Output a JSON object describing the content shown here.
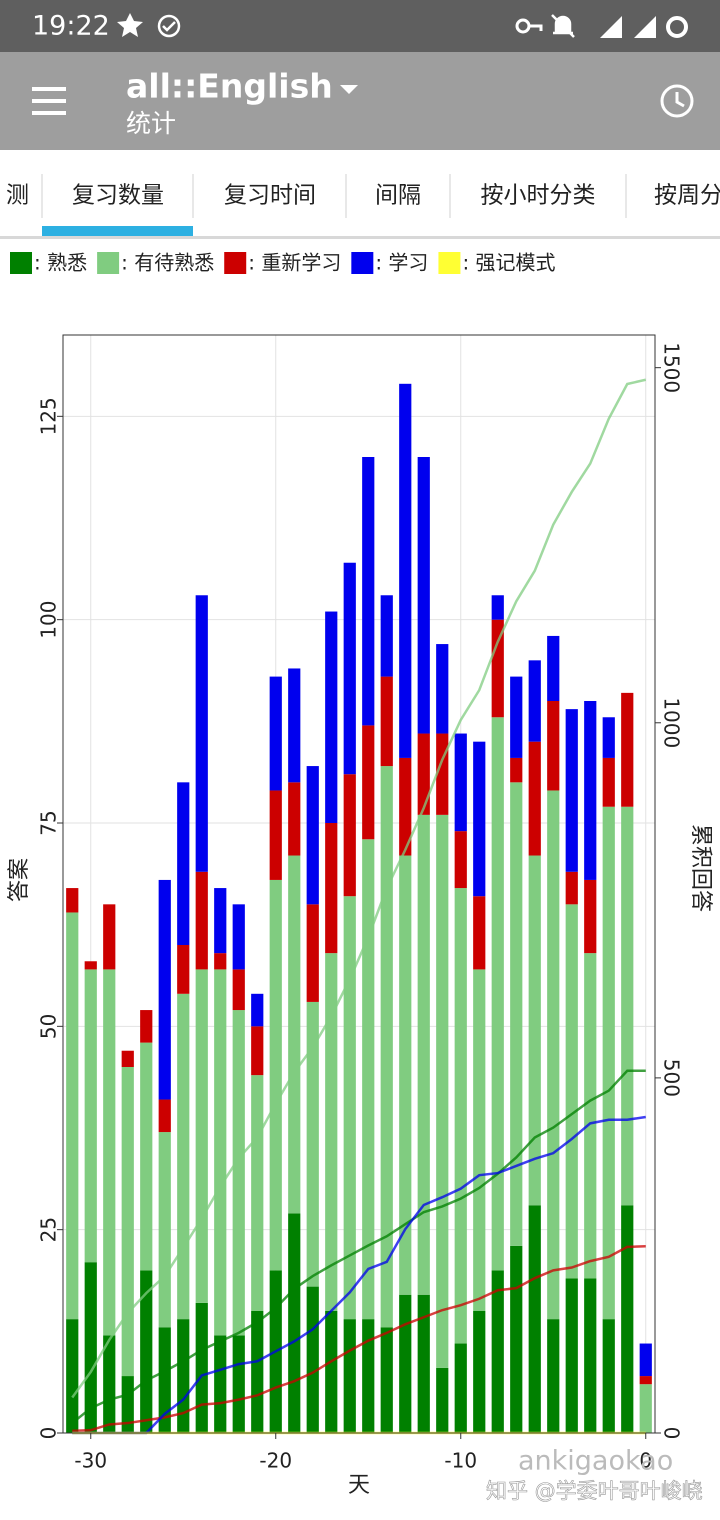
{
  "status_bar": {
    "time": "19:22"
  },
  "app_bar": {
    "title": "all::English",
    "subtitle": "统计"
  },
  "tabs": [
    "测",
    "复习数量",
    "复习时间",
    "间隔",
    "按小时分类",
    "按周分"
  ],
  "active_tab": 1,
  "chart_data": {
    "type": "bar",
    "stacked": true,
    "cumulative": true,
    "grid": true,
    "x": [
      -31,
      -30,
      -29,
      -28,
      -27,
      -26,
      -25,
      -24,
      -23,
      -22,
      -21,
      -20,
      -19,
      -18,
      -17,
      -16,
      -15,
      -14,
      -13,
      -12,
      -11,
      -10,
      -9,
      -8,
      -7,
      -6,
      -5,
      -4,
      -3,
      -2,
      -1,
      0
    ],
    "xlim": [
      -31.5,
      0.5
    ],
    "xticks": [
      -30,
      -20,
      -10,
      0
    ],
    "ylim": [
      0,
      135
    ],
    "yticks": [
      0,
      25,
      50,
      75,
      100,
      125
    ],
    "y2lim": [
      0,
      1546
    ],
    "y2ticks": [
      0,
      500,
      1000,
      1500
    ],
    "xlabel": "天",
    "ylabel": "答案",
    "y2label": "累积回答",
    "series": [
      {
        "name": ": 熟悉",
        "color": "#008000",
        "values": [
          14,
          21,
          12,
          7,
          20,
          13,
          14,
          16,
          12,
          12,
          15,
          20,
          27,
          18,
          15,
          14,
          14,
          13,
          17,
          17,
          8,
          11,
          15,
          20,
          23,
          28,
          14,
          19,
          19,
          14,
          28,
          0
        ]
      },
      {
        "name": ": 有待熟悉",
        "color": "#80cc80",
        "values": [
          50,
          36,
          45,
          38,
          28,
          24,
          40,
          41,
          45,
          40,
          29,
          48,
          44,
          35,
          44,
          52,
          59,
          69,
          54,
          59,
          68,
          56,
          42,
          68,
          57,
          43,
          65,
          46,
          40,
          63,
          49,
          6
        ]
      },
      {
        "name": ": 重新学习",
        "color": "#cc0000",
        "values": [
          3,
          1,
          8,
          2,
          4,
          4,
          6,
          12,
          2,
          5,
          6,
          11,
          9,
          12,
          16,
          15,
          14,
          11,
          12,
          10,
          10,
          7,
          9,
          12,
          3,
          14,
          11,
          4,
          9,
          6,
          14,
          1
        ]
      },
      {
        "name": ": 学习",
        "color": "#0000ee",
        "values": [
          0,
          0,
          0,
          0,
          0,
          27,
          20,
          34,
          8,
          8,
          4,
          14,
          14,
          17,
          26,
          26,
          33,
          10,
          46,
          34,
          11,
          12,
          19,
          3,
          10,
          10,
          8,
          20,
          22,
          5,
          0,
          4
        ]
      },
      {
        "name": ": 强记模式",
        "color": "#ffff33",
        "values": [
          0,
          0,
          0,
          0,
          0,
          0,
          0,
          0,
          0,
          0,
          0,
          0,
          0,
          0,
          0,
          0,
          0,
          0,
          0,
          0,
          0,
          0,
          0,
          0,
          0,
          0,
          0,
          0,
          0,
          0,
          0,
          0
        ]
      }
    ]
  },
  "watermark": {
    "handle": "ankigaokao",
    "site": "知乎 @学委叶哥叶峻峣"
  }
}
